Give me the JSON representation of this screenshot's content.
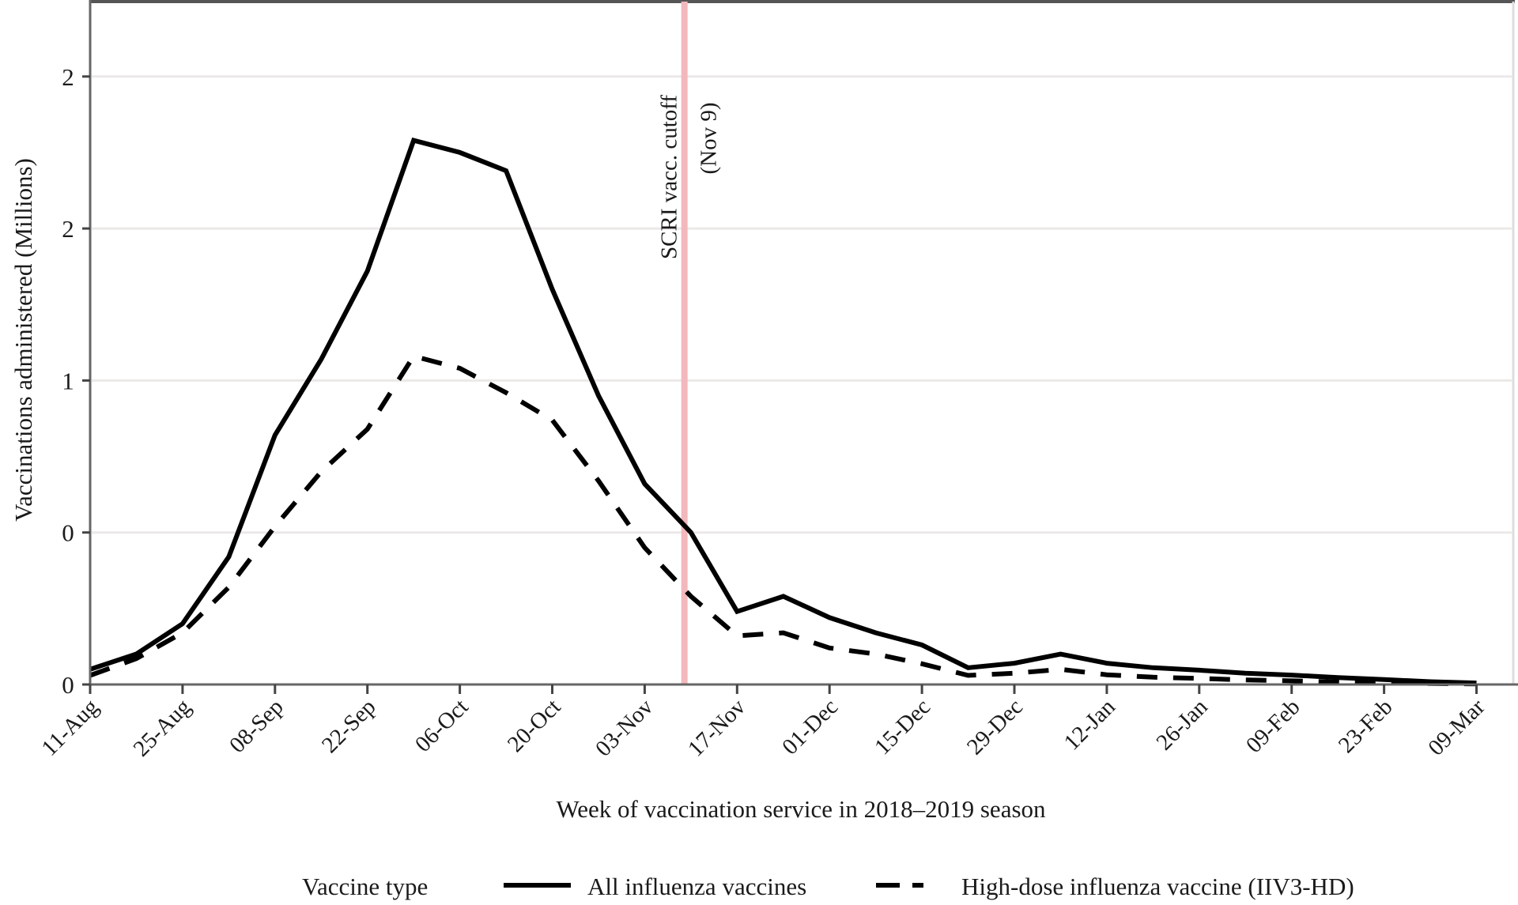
{
  "chart_data": {
    "type": "line",
    "title": "",
    "xlabel": "Week of vaccination service in 2018–2019 season",
    "ylabel": "Vaccinations administered (Millions)",
    "ylim": [
      0,
      2.25
    ],
    "grid": true,
    "x": [
      "11-Aug",
      "18-Aug",
      "25-Aug",
      "01-Sep",
      "08-Sep",
      "15-Sep",
      "22-Sep",
      "29-Sep",
      "06-Oct",
      "13-Oct",
      "20-Oct",
      "27-Oct",
      "03-Nov",
      "10-Nov",
      "17-Nov",
      "24-Nov",
      "01-Dec",
      "08-Dec",
      "15-Dec",
      "22-Dec",
      "29-Dec",
      "05-Jan",
      "12-Jan",
      "19-Jan",
      "26-Jan",
      "02-Feb",
      "09-Feb",
      "16-Feb",
      "23-Feb",
      "02-Mar",
      "09-Mar"
    ],
    "xtick_labels": [
      "11-Aug",
      "25-Aug",
      "08-Sep",
      "22-Sep",
      "06-Oct",
      "20-Oct",
      "03-Nov",
      "17-Nov",
      "01-Dec",
      "15-Dec",
      "29-Dec",
      "12-Jan",
      "26-Jan",
      "09-Feb",
      "23-Feb",
      "09-Mar"
    ],
    "ytick_values": [
      0,
      0.5,
      1.0,
      1.5,
      2.0
    ],
    "ytick_labels": [
      "0",
      "0",
      "1",
      "2",
      "2"
    ],
    "series": [
      {
        "name": "All influenza vaccines",
        "style": "solid",
        "color": "#000000",
        "values": [
          0.05,
          0.1,
          0.2,
          0.42,
          0.82,
          1.07,
          1.36,
          1.79,
          1.75,
          1.69,
          1.3,
          0.95,
          0.66,
          0.5,
          0.24,
          0.29,
          0.22,
          0.17,
          0.13,
          0.055,
          0.07,
          0.1,
          0.07,
          0.055,
          0.047,
          0.037,
          0.031,
          0.023,
          0.016,
          0.009,
          0.005
        ]
      },
      {
        "name": "High-dose influenza vaccine (IIV3-HD)",
        "style": "dashed",
        "color": "#000000",
        "values": [
          0.03,
          0.085,
          0.17,
          0.32,
          0.52,
          0.7,
          0.84,
          1.08,
          1.04,
          0.96,
          0.87,
          0.67,
          0.45,
          0.29,
          0.16,
          0.17,
          0.12,
          0.1,
          0.068,
          0.03,
          0.037,
          0.05,
          0.032,
          0.024,
          0.02,
          0.015,
          0.012,
          0.008,
          0.005,
          0.003,
          0.002
        ]
      }
    ],
    "annotations": [
      {
        "type": "vertical-line",
        "x_date": "09-Nov",
        "x_week_index": 12.86,
        "color": "#f2b8bc",
        "label_line1": "SCRI vacc. cutoff",
        "label_line2": "(Nov 9)"
      }
    ],
    "legend": {
      "title": "Vaccine type",
      "placement": "bottom",
      "entries": [
        "All influenza vaccines",
        "High-dose influenza vaccine (IIV3-HD)"
      ]
    }
  }
}
